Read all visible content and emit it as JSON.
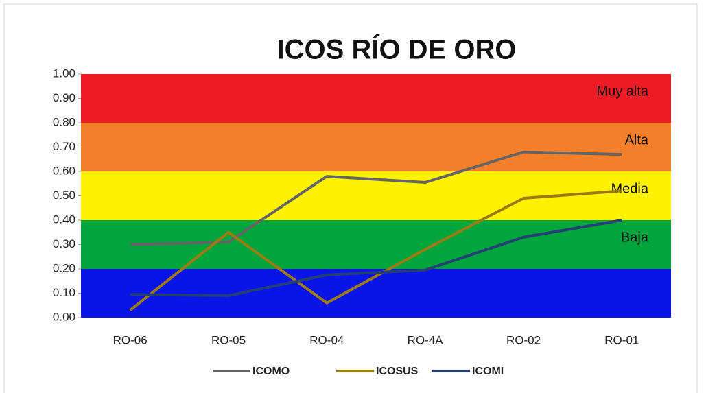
{
  "chart_data": {
    "type": "line",
    "title": "ICOS RÍO DE ORO",
    "categories": [
      "RO-06",
      "RO-05",
      "RO-04",
      "RO-4A",
      "RO-02",
      "RO-01"
    ],
    "series": [
      {
        "name": "ICOMO",
        "color": "#646464",
        "values": [
          0.3,
          0.31,
          0.58,
          0.555,
          0.68,
          0.67
        ]
      },
      {
        "name": "ICOSUS",
        "color": "#9c7a14",
        "values": [
          0.03,
          0.35,
          0.06,
          0.28,
          0.49,
          0.52
        ]
      },
      {
        "name": "ICOMI",
        "color": "#243f75",
        "values": [
          0.095,
          0.09,
          0.175,
          0.195,
          0.33,
          0.4
        ]
      }
    ],
    "bands": [
      {
        "from": 0,
        "to": 0.2,
        "color": "#0a14e6"
      },
      {
        "from": 0.2,
        "to": 0.4,
        "color": "#00a63c",
        "label": "Baja"
      },
      {
        "from": 0.4,
        "to": 0.6,
        "color": "#fff200",
        "label": "Media"
      },
      {
        "from": 0.6,
        "to": 0.8,
        "color": "#f47f2a",
        "label": "Alta"
      },
      {
        "from": 0.8,
        "to": 1.0,
        "color": "#ed1c24",
        "label": "Muy alta"
      }
    ],
    "ylim": [
      0,
      1
    ],
    "yticks": [
      {
        "value": 0,
        "label": "0.00"
      },
      {
        "value": 0.1,
        "label": "0.10"
      },
      {
        "value": 0.2,
        "label": "0.20"
      },
      {
        "value": 0.3,
        "label": "0.30"
      },
      {
        "value": 0.4,
        "label": "0.40"
      },
      {
        "value": 0.5,
        "label": "0.50"
      },
      {
        "value": 0.6,
        "label": "0.60"
      },
      {
        "value": 0.7,
        "label": "0.70"
      },
      {
        "value": 0.8,
        "label": "0.80"
      },
      {
        "value": 0.9,
        "label": "0.90"
      },
      {
        "value": 1,
        "label": "1.00"
      }
    ],
    "legend": "bottom"
  }
}
